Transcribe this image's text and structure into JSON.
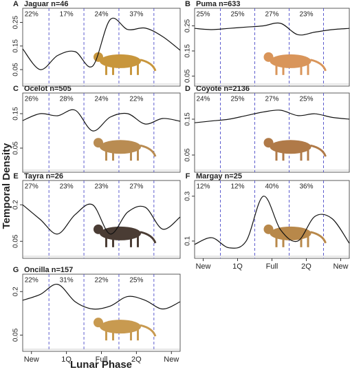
{
  "y_label": "Temporal Density",
  "x_label": "Lunar Phase",
  "chart_data": [
    {
      "type": "line",
      "panel": "A",
      "title": "Jaguar n=46",
      "xlim": [
        -0.25,
        4.25
      ],
      "ylim": [
        -0.02,
        0.31
      ],
      "yticks": [
        0.05,
        0.15,
        0.25
      ],
      "dividers": [
        0.5,
        1.5,
        2.5,
        3.5
      ],
      "x": [
        -0.25,
        0.25,
        0.75,
        1.25,
        1.75,
        2.25,
        2.75,
        3.25,
        3.75,
        4.25
      ],
      "values": [
        0.138,
        0.05,
        0.11,
        0.126,
        0.065,
        0.262,
        0.22,
        0.226,
        0.19,
        0.132
      ],
      "shares": [
        22,
        17,
        24,
        37
      ],
      "share_labels": [
        "22%",
        "17%",
        "24%",
        "37%"
      ]
    },
    {
      "type": "line",
      "panel": "B",
      "title": "Puma n=633",
      "xlim": [
        -0.25,
        4.25
      ],
      "ylim": [
        0.01,
        0.32
      ],
      "yticks": [
        0.05,
        0.15,
        0.25
      ],
      "dividers": [
        0.5,
        1.5,
        2.5,
        3.5
      ],
      "x": [
        -0.25,
        0.25,
        0.75,
        1.25,
        1.75,
        2.25,
        2.75,
        3.25,
        3.75,
        4.25
      ],
      "values": [
        0.24,
        0.235,
        0.24,
        0.245,
        0.25,
        0.26,
        0.215,
        0.225,
        0.235,
        0.24
      ],
      "shares": [
        25,
        25,
        27,
        23
      ],
      "share_labels": [
        "25%",
        "25%",
        "27%",
        "23%"
      ]
    },
    {
      "type": "line",
      "panel": "C",
      "title": "Ocelot n=505",
      "xlim": [
        -0.25,
        4.25
      ],
      "ylim": [
        -0.02,
        0.21
      ],
      "yticks": [
        0.05,
        0.15
      ],
      "dividers": [
        0.5,
        1.5,
        2.5,
        3.5
      ],
      "x": [
        -0.25,
        0.25,
        0.75,
        1.25,
        1.75,
        2.25,
        2.75,
        3.25,
        3.75,
        4.25
      ],
      "values": [
        0.13,
        0.15,
        0.144,
        0.16,
        0.1,
        0.14,
        0.15,
        0.12,
        0.136,
        0.128
      ],
      "shares": [
        26,
        28,
        24,
        22
      ],
      "share_labels": [
        "26%",
        "28%",
        "24%",
        "22%"
      ]
    },
    {
      "type": "line",
      "panel": "D",
      "title": "Coyote n=2136",
      "xlim": [
        -0.25,
        4.25
      ],
      "ylim": [
        0.002,
        0.223
      ],
      "yticks": [
        0.05,
        0.15
      ],
      "dividers": [
        0.5,
        1.5,
        2.5,
        3.5
      ],
      "x": [
        -0.25,
        0.25,
        0.75,
        1.25,
        1.75,
        2.25,
        2.75,
        3.25,
        3.75,
        4.25
      ],
      "values": [
        0.14,
        0.145,
        0.15,
        0.16,
        0.17,
        0.175,
        0.16,
        0.165,
        0.155,
        0.15
      ],
      "shares": [
        24,
        25,
        27,
        25
      ],
      "share_labels": [
        "24%",
        "25%",
        "27%",
        "25%"
      ]
    },
    {
      "type": "line",
      "panel": "E",
      "title": "Tayra n=26",
      "xlim": [
        -0.25,
        4.25
      ],
      "ylim": [
        -0.02,
        0.3
      ],
      "yticks": [
        0.05,
        0.2
      ],
      "dividers": [
        0.5,
        1.5,
        2.5,
        3.5
      ],
      "x": [
        -0.25,
        0.25,
        0.75,
        1.25,
        1.75,
        2.25,
        2.75,
        3.25,
        3.75,
        4.25
      ],
      "values": [
        0.2,
        0.14,
        0.08,
        0.16,
        0.2,
        0.08,
        0.17,
        0.19,
        0.1,
        0.15
      ],
      "shares": [
        27,
        23,
        23,
        27
      ],
      "share_labels": [
        "27%",
        "23%",
        "23%",
        "27%"
      ]
    },
    {
      "type": "line",
      "panel": "F",
      "title": "Margay n=25",
      "xlim": [
        -0.25,
        4.25
      ],
      "ylim": [
        0.023,
        0.37
      ],
      "yticks": [
        0.1,
        0.3
      ],
      "dividers": [
        0.5,
        1.5,
        2.5,
        3.5
      ],
      "xticks": [
        {
          "value": 0,
          "label": "New"
        },
        {
          "value": 1,
          "label": "1Q"
        },
        {
          "value": 2,
          "label": "Full"
        },
        {
          "value": 3,
          "label": "2Q"
        },
        {
          "value": 4,
          "label": "New"
        }
      ],
      "x": [
        -0.25,
        0.25,
        0.75,
        1.25,
        1.75,
        2.25,
        2.75,
        3.25,
        3.75,
        4.25
      ],
      "values": [
        0.085,
        0.115,
        0.07,
        0.1,
        0.3,
        0.15,
        0.1,
        0.21,
        0.2,
        0.09
      ],
      "shares": [
        12,
        12,
        40,
        36
      ],
      "share_labels": [
        "12%",
        "12%",
        "40%",
        "36%"
      ]
    },
    {
      "type": "line",
      "panel": "G",
      "title": "Oncilla n=157",
      "xlim": [
        -0.25,
        4.25
      ],
      "ylim": [
        -0.006,
        0.26
      ],
      "yticks": [
        0.05,
        0.2
      ],
      "dividers": [
        0.5,
        1.5,
        2.5,
        3.5
      ],
      "xticks": [
        {
          "value": 0,
          "label": "New"
        },
        {
          "value": 1,
          "label": "1Q"
        },
        {
          "value": 2,
          "label": "Full"
        },
        {
          "value": 3,
          "label": "2Q"
        },
        {
          "value": 4,
          "label": "New"
        }
      ],
      "x": [
        -0.25,
        0.25,
        0.75,
        1.25,
        1.75,
        2.25,
        2.75,
        3.25,
        3.75,
        4.25
      ],
      "values": [
        0.17,
        0.19,
        0.225,
        0.165,
        0.14,
        0.15,
        0.183,
        0.17,
        0.14,
        0.165
      ],
      "shares": [
        22,
        31,
        22,
        25
      ],
      "share_labels": [
        "22%",
        "31%",
        "22%",
        "25%"
      ]
    }
  ]
}
